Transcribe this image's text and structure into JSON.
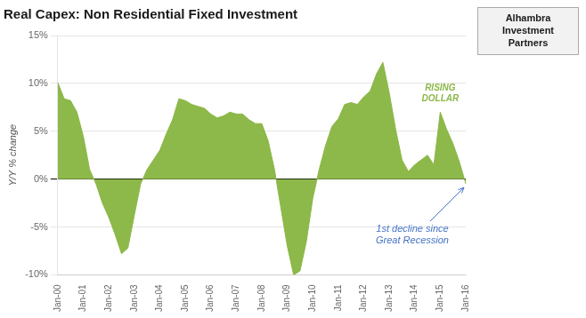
{
  "chart_data": {
    "type": "area",
    "title": "Real Capex: Non Residential Fixed Investment",
    "ylabel": "Y/Y % change",
    "categories": [
      "Jan-00",
      null,
      null,
      null,
      "Jan-01",
      null,
      null,
      null,
      "Jan-02",
      null,
      null,
      null,
      "Jan-03",
      null,
      null,
      null,
      "Jan-04",
      null,
      null,
      null,
      "Jan-05",
      null,
      null,
      null,
      "Jan-06",
      null,
      null,
      null,
      "Jan-07",
      null,
      null,
      null,
      "Jan-08",
      null,
      null,
      null,
      "Jan-09",
      null,
      null,
      null,
      "Jan-10",
      null,
      null,
      null,
      "Jan-11",
      null,
      null,
      null,
      "Jan-12",
      null,
      null,
      null,
      "Jan-13",
      null,
      null,
      null,
      "Jan-14",
      null,
      null,
      null,
      "Jan-15",
      null,
      null,
      null,
      "Jan-16"
    ],
    "values": [
      0.101,
      0.084,
      0.082,
      0.07,
      0.045,
      0.01,
      -0.005,
      -0.025,
      -0.04,
      -0.058,
      -0.078,
      -0.072,
      -0.038,
      -0.005,
      0.01,
      0.02,
      0.03,
      0.047,
      0.062,
      0.084,
      0.082,
      0.078,
      0.076,
      0.074,
      0.068,
      0.064,
      0.066,
      0.07,
      0.068,
      0.068,
      0.062,
      0.058,
      0.058,
      0.04,
      0.01,
      -0.03,
      -0.07,
      -0.1,
      -0.096,
      -0.065,
      -0.02,
      0.01,
      0.035,
      0.055,
      0.063,
      0.078,
      0.08,
      0.078,
      0.086,
      0.092,
      0.11,
      0.122,
      0.09,
      0.052,
      0.02,
      0.008,
      0.015,
      0.02,
      0.025,
      0.015,
      0.07,
      0.052,
      0.037,
      0.018,
      -0.005
    ],
    "color": "#8db84a",
    "ylim": [
      -0.1,
      0.15
    ],
    "yticks": [
      {
        "value": -0.1,
        "label": "-10%"
      },
      {
        "value": -0.05,
        "label": "-5%"
      },
      {
        "value": 0.0,
        "label": "0%"
      },
      {
        "value": 0.05,
        "label": "5%"
      },
      {
        "value": 0.1,
        "label": "10%"
      },
      {
        "value": 0.15,
        "label": "15%"
      }
    ],
    "grid": true,
    "annotations": [
      {
        "text": "RISING\nDOLLAR",
        "x": "Jan-15",
        "color": "#8db84a"
      },
      {
        "text": "1st decline since\nGreat Recession",
        "x": "Jan-16",
        "color": "#4472c4"
      },
      {
        "text": "Alhambra\nInvestment\nPartners"
      }
    ]
  }
}
